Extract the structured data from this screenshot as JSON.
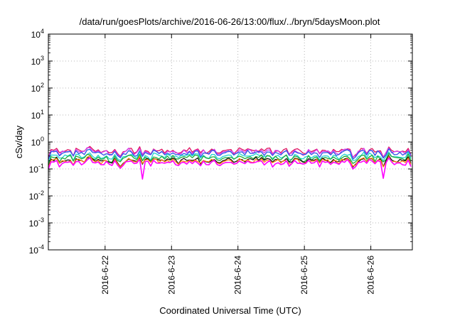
{
  "chart_data": {
    "type": "line",
    "title": "/data/run/goesPlots/archive/2016-06-26/13:00/flux/../bryn/5daysMoon.plot",
    "xlabel": "Coordinated Universal Time (UTC)",
    "ylabel": "cSv/day",
    "yscale": "log",
    "ylim": [
      0.0001,
      10000
    ],
    "y_ticks": [
      {
        "value": 0.0001,
        "base": "10",
        "exp": "-4"
      },
      {
        "value": 0.001,
        "base": "10",
        "exp": "-3"
      },
      {
        "value": 0.01,
        "base": "10",
        "exp": "-2"
      },
      {
        "value": 0.1,
        "base": "10",
        "exp": "-1"
      },
      {
        "value": 1,
        "base": "10",
        "exp": "0"
      },
      {
        "value": 10,
        "base": "10",
        "exp": "1"
      },
      {
        "value": 100,
        "base": "10",
        "exp": "2"
      },
      {
        "value": 1000,
        "base": "10",
        "exp": "3"
      },
      {
        "value": 10000,
        "base": "10",
        "exp": "4"
      }
    ],
    "xlim": [
      "2016-06-21T03:30",
      "2016-06-26T15:00"
    ],
    "x_ticks": [
      {
        "value": "2016-06-22T00:00",
        "label": "2016-6-22"
      },
      {
        "value": "2016-06-23T00:00",
        "label": "2016-6-23"
      },
      {
        "value": "2016-06-24T00:00",
        "label": "2016-6-24"
      },
      {
        "value": "2016-06-25T00:00",
        "label": "2016-6-25"
      },
      {
        "value": "2016-06-26T00:00",
        "label": "2016-6-26"
      }
    ],
    "grid": true,
    "sample_interval_hours": 1,
    "series": [
      {
        "color": "#e0115f",
        "base": 0.46,
        "amp": 0.15
      },
      {
        "color": "#d63df0",
        "base": 0.42,
        "amp": 0.13
      },
      {
        "color": "#2e55e6",
        "base": 0.38,
        "amp": 0.12
      },
      {
        "color": "#22d3cf",
        "base": 0.29,
        "amp": 0.09
      },
      {
        "color": "#1fae3a",
        "base": 0.25,
        "amp": 0.07
      },
      {
        "color": "#111111",
        "base": 0.205,
        "amp": 0.04
      },
      {
        "color": "#ff7f0e",
        "base": 0.19,
        "amp": 0.035
      },
      {
        "color": "#ff00ff",
        "base": 0.165,
        "amp": 0.05
      }
    ],
    "dips": [
      {
        "time": "2016-06-22T13:30",
        "value": 0.042
      },
      {
        "time": "2016-06-26T04:30",
        "value": 0.045
      }
    ]
  }
}
